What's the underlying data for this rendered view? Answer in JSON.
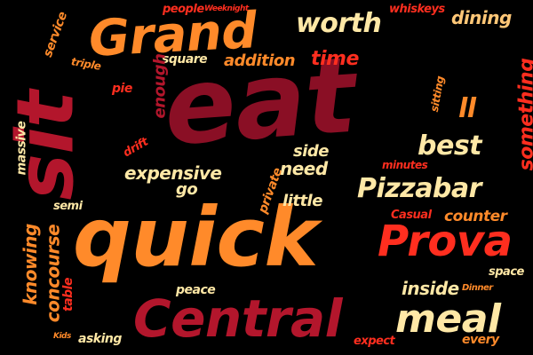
{
  "background": "#000000",
  "colors": {
    "red": "#ff2e1f",
    "crimson": "#b3162c",
    "dark": "#8a0f25",
    "orange": "#ff8a2a",
    "light": "#ffb55c",
    "cream": "#ffe8a6",
    "peach": "#ffc777"
  },
  "words": {
    "eat": "eat",
    "sit": "sit",
    "quick": "quick",
    "grand": "Grand",
    "central": "Central",
    "prova": "Prova",
    "meal": "meal",
    "pizzabar": "Pizzabar",
    "worth": "worth",
    "dining": "dining",
    "time": "time",
    "addition": "addition",
    "square": "square",
    "people": "people",
    "weeknight": "Weeknight",
    "whiskeys": "whiskeys",
    "service": "service",
    "triple": "triple",
    "pie": "pie",
    "enough": "enough",
    "massive": "massive",
    "drift": "drift",
    "expensive": "expensive",
    "go": "go",
    "side": "side",
    "need": "need",
    "private": "private",
    "little": "little",
    "best": "best",
    "minutes": "minutes",
    "something": "something",
    "sitting": "sitting",
    "ll": "ll",
    "semi": "semi",
    "knowing": "knowing",
    "concourse": "concourse",
    "table": "table",
    "casual": "Casual",
    "counter": "counter",
    "space": "space",
    "inside": "inside",
    "dinner": "Dinner",
    "peace": "peace",
    "kids": "Kids",
    "asking": "asking",
    "expect": "expect",
    "every": "every"
  }
}
